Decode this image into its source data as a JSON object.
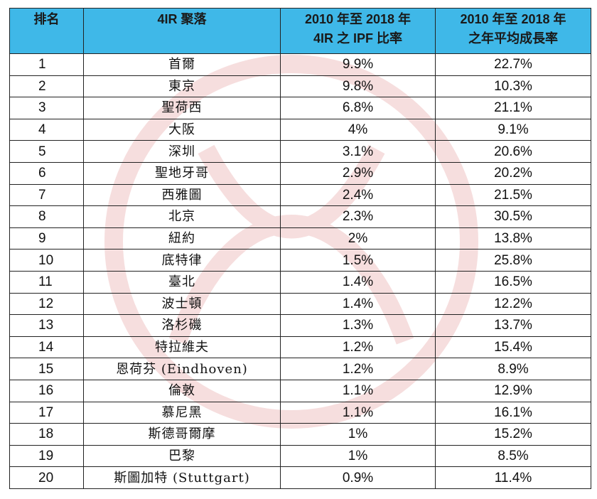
{
  "table": {
    "headers": {
      "rank": "排名",
      "city": "4IR 聚落",
      "ipf_line1": "2010 年至 2018 年",
      "ipf_line2": "4IR 之 IPF 比率",
      "growth_line1": "2010 年至 2018 年",
      "growth_line2": "之年平均成長率"
    },
    "rows": [
      {
        "rank": "1",
        "city": "首爾",
        "ipf": "9.9%",
        "growth": "22.7%"
      },
      {
        "rank": "2",
        "city": "東京",
        "ipf": "9.8%",
        "growth": "10.3%"
      },
      {
        "rank": "3",
        "city": "聖荷西",
        "ipf": "6.8%",
        "growth": "21.1%"
      },
      {
        "rank": "4",
        "city": "大阪",
        "ipf": "4%",
        "growth": "9.1%"
      },
      {
        "rank": "5",
        "city": "深圳",
        "ipf": "3.1%",
        "growth": "20.6%"
      },
      {
        "rank": "6",
        "city": "聖地牙哥",
        "ipf": "2.9%",
        "growth": "20.2%"
      },
      {
        "rank": "7",
        "city": "西雅圖",
        "ipf": "2.4%",
        "growth": "21.5%"
      },
      {
        "rank": "8",
        "city": "北京",
        "ipf": "2.3%",
        "growth": "30.5%"
      },
      {
        "rank": "9",
        "city": "紐約",
        "ipf": "2%",
        "growth": "13.8%"
      },
      {
        "rank": "10",
        "city": "底特律",
        "ipf": "1.5%",
        "growth": "25.8%"
      },
      {
        "rank": "11",
        "city": "臺北",
        "ipf": "1.4%",
        "growth": "16.5%"
      },
      {
        "rank": "12",
        "city": "波士頓",
        "ipf": "1.4%",
        "growth": "12.2%"
      },
      {
        "rank": "13",
        "city": "洛杉磯",
        "ipf": "1.3%",
        "growth": "13.7%"
      },
      {
        "rank": "14",
        "city": "特拉維夫",
        "ipf": "1.2%",
        "growth": "15.4%"
      },
      {
        "rank": "15",
        "city": "恩荷芬 (Eindhoven)",
        "ipf": "1.2%",
        "growth": "8.9%"
      },
      {
        "rank": "16",
        "city": "倫敦",
        "ipf": "1.1%",
        "growth": "12.9%"
      },
      {
        "rank": "17",
        "city": "慕尼黑",
        "ipf": "1.1%",
        "growth": "16.1%"
      },
      {
        "rank": "18",
        "city": "斯德哥爾摩",
        "ipf": "1%",
        "growth": "15.2%"
      },
      {
        "rank": "19",
        "city": "巴黎",
        "ipf": "1%",
        "growth": "8.5%"
      },
      {
        "rank": "20",
        "city": "斯圖加特 (Stuttgart)",
        "ipf": "0.9%",
        "growth": "11.4%"
      }
    ]
  },
  "watermark_color": "#f3d9d9",
  "header_color": "#3fb8e8"
}
